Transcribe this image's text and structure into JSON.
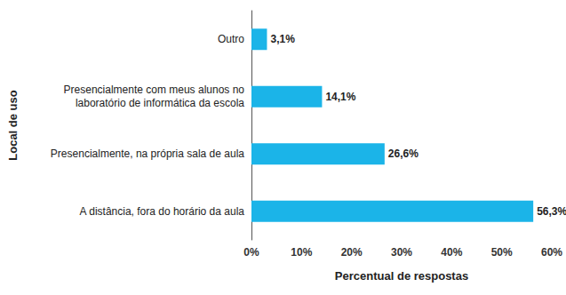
{
  "chart_data": {
    "type": "bar",
    "orientation": "horizontal",
    "categories": [
      "Outro",
      "Presencialmente com meus alunos no\nlaboratório de informática da escola",
      "Presencialmente, na própria sala de aula",
      "A distância, fora do horário da aula"
    ],
    "values": [
      3.1,
      14.1,
      26.6,
      56.3
    ],
    "value_labels": [
      "3,1%",
      "14,1%",
      "26,6%",
      "56,3%"
    ],
    "data_labels": true,
    "color": "#1bb4e8",
    "x_label": "Percentual de respostas",
    "y_label": "Local de uso",
    "xlim": [
      0,
      60
    ],
    "xticks": [
      {
        "value": 0,
        "label": "0%"
      },
      {
        "value": 10,
        "label": "10%"
      },
      {
        "value": 20,
        "label": "20%"
      },
      {
        "value": 30,
        "label": "30%"
      },
      {
        "value": 40,
        "label": "40%"
      },
      {
        "value": 50,
        "label": "50%"
      },
      {
        "value": 60,
        "label": "60%"
      }
    ],
    "grid": false
  }
}
